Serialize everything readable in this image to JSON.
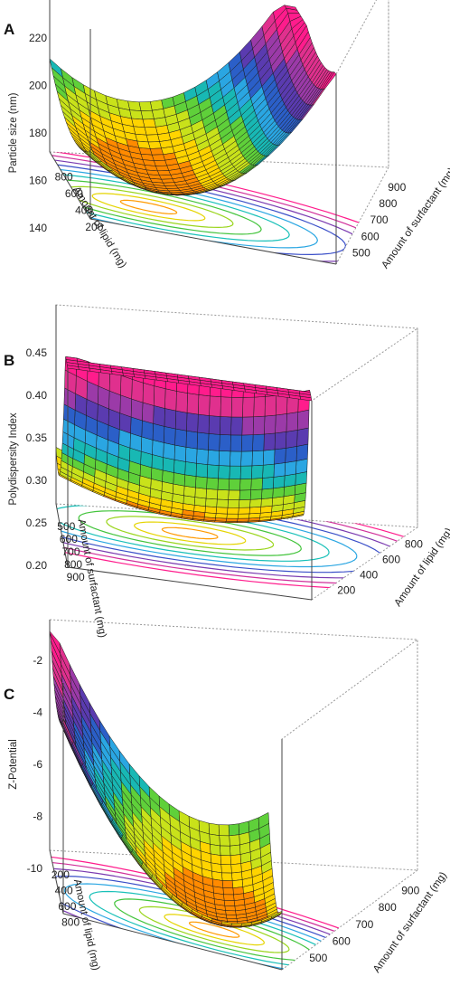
{
  "chart_data": [
    {
      "panel_label": "A",
      "type": "surface3d",
      "zlabel": "Particle size (nm)",
      "xlabel": "Amount of lipid (mg)",
      "ylabel": "Amount of surfactant (mg)",
      "z_ticks": [
        "140",
        "160",
        "180",
        "200",
        "220"
      ],
      "x_ticks": [
        "800",
        "600",
        "400",
        "200"
      ],
      "y_ticks": [
        "500",
        "600",
        "700",
        "800",
        "900"
      ],
      "zlim": [
        140,
        220
      ],
      "xlim": [
        150,
        850
      ],
      "ylim": [
        450,
        950
      ],
      "surface": {
        "min_value": 150,
        "max_value": 220,
        "optimum_lipid": 640,
        "optimum_surfactant": 640
      },
      "colors": [
        "#ff8a00",
        "#ffd400",
        "#c9e21a",
        "#5fd03a",
        "#18b8b4",
        "#2aa6e2",
        "#2b5fc8",
        "#5a3bb0",
        "#9b3aa8",
        "#e0308e",
        "#ff1c8c"
      ]
    },
    {
      "panel_label": "B",
      "type": "surface3d",
      "zlabel": "Polydispersity Index",
      "xlabel": "Amount of surfactant (mg)",
      "ylabel": "Amount of lipid (mg)",
      "z_ticks": [
        "0.20",
        "0.25",
        "0.30",
        "0.35",
        "0.40",
        "0.45"
      ],
      "x_ticks": [
        "500",
        "600",
        "700",
        "800",
        "900"
      ],
      "y_ticks": [
        "200",
        "400",
        "600",
        "800"
      ],
      "zlim": [
        0.2,
        0.45
      ],
      "xlim": [
        450,
        950
      ],
      "ylim": [
        150,
        850
      ],
      "surface": {
        "min_value": 0.22,
        "max_value": 0.45,
        "optimum_surfactant": 720,
        "optimum_lipid": 720
      },
      "colors": [
        "#ff8a00",
        "#ffd400",
        "#c9e21a",
        "#5fd03a",
        "#18b8b4",
        "#2aa6e2",
        "#2b5fc8",
        "#5a3bb0",
        "#9b3aa8",
        "#e0308e",
        "#ff1c8c"
      ]
    },
    {
      "panel_label": "C",
      "type": "surface3d",
      "zlabel": "Z-Potential",
      "xlabel": "Amount of lipid (mg)",
      "ylabel": "Amount of surfactant (mg)",
      "z_ticks": [
        "-10",
        "-8",
        "-6",
        "-4",
        "-2"
      ],
      "x_ticks": [
        "200",
        "400",
        "600",
        "800"
      ],
      "y_ticks": [
        "500",
        "600",
        "700",
        "800",
        "900"
      ],
      "zlim": [
        -11,
        -1
      ],
      "xlim": [
        150,
        850
      ],
      "ylim": [
        450,
        950
      ],
      "surface": {
        "min_value": -10.5,
        "max_value": -1.5,
        "optimum_lipid": 650,
        "optimum_surfactant": 640
      },
      "colors": [
        "#ff8a00",
        "#ffd400",
        "#c9e21a",
        "#5fd03a",
        "#18b8b4",
        "#2aa6e2",
        "#2b5fc8",
        "#5a3bb0",
        "#9b3aa8",
        "#e0308e",
        "#ff1c8c"
      ]
    }
  ]
}
